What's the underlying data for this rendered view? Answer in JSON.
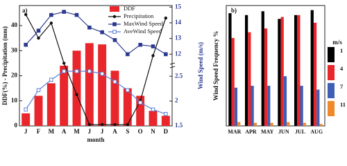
{
  "chart_data": [
    {
      "type": "bar-line",
      "panel_label": "a)",
      "x_label": "month",
      "y_label": "DDF(%) - Precipitation (mm)",
      "y2_label": "Wind Speed (m/s)",
      "categories": [
        "J",
        "F",
        "M",
        "A",
        "M",
        "J",
        "J",
        "A",
        "S",
        "O",
        "N",
        "D"
      ],
      "ylim": [
        0,
        48
      ],
      "yticks": [
        0,
        10,
        20,
        30,
        40
      ],
      "y2lim": [
        1.5,
        2.67
      ],
      "y2ticks": [
        1.5,
        2.0,
        2.5
      ],
      "y3lim": [
        11.4,
        15.1
      ],
      "y3ticks": [
        12,
        13,
        14,
        15
      ],
      "series": [
        {
          "name": "DDF",
          "kind": "bar",
          "color": "#e8262b",
          "values": [
            5,
            12,
            17,
            24,
            30,
            33,
            32.5,
            22,
            15,
            12,
            6,
            4
          ]
        },
        {
          "name": "Precipitation",
          "kind": "line",
          "marker": "circle",
          "color": "#111111",
          "values": [
            44.4,
            35,
            41,
            25,
            12.5,
            0.5,
            0.5,
            0.5,
            0.5,
            10,
            28,
            43
          ]
        },
        {
          "name": "MaxWind Speed",
          "kind": "line",
          "marker": "square",
          "axis": "y3",
          "color": "#2b3990",
          "values": [
            12.6,
            13.5,
            14.5,
            14.7,
            14.5,
            13.7,
            13.4,
            12.9,
            12.0,
            12.6,
            12.5,
            12.0
          ]
        },
        {
          "name": "AveWind Speed",
          "kind": "line",
          "marker": "open-square",
          "axis": "y2",
          "color": "#5b7fd6",
          "values": [
            1.83,
            2.22,
            2.43,
            2.6,
            2.6,
            2.6,
            2.55,
            2.39,
            2.22,
            1.97,
            1.83,
            1.74
          ]
        }
      ]
    },
    {
      "type": "bar",
      "panel_label": "b)",
      "y_label": "Wind Speed Frequency %",
      "legend_title": "m/s",
      "categories": [
        "MAR",
        "APR",
        "MAY",
        "JUN",
        "JUL",
        "AUG"
      ],
      "ylim": [
        0,
        31.5
      ],
      "series": [
        {
          "name": "1",
          "color": "#000000",
          "values": [
            29.5,
            29,
            30,
            28,
            29,
            30.3
          ]
        },
        {
          "name": "4",
          "color": "#e8262b",
          "values": [
            23,
            24.5,
            25.5,
            28.5,
            29,
            27
          ]
        },
        {
          "name": "7",
          "color": "#3f5fb5",
          "values": [
            10,
            10.5,
            10.5,
            13,
            10.5,
            9.5
          ]
        },
        {
          "name": "11",
          "color": "#f0892a",
          "values": [
            1,
            0.8,
            0.8,
            1,
            0.8,
            0.5
          ]
        }
      ]
    }
  ]
}
